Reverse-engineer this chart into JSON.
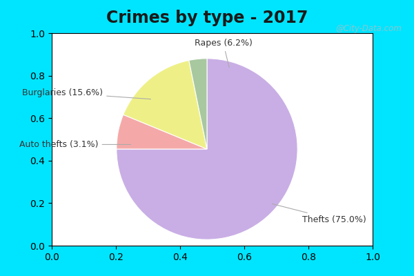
{
  "title": "Crimes by type - 2017",
  "title_fontsize": 17,
  "title_fontweight": "bold",
  "slices": [
    {
      "label": "Thefts",
      "pct": 75.0,
      "color": "#c9aee5"
    },
    {
      "label": "Rapes",
      "pct": 6.2,
      "color": "#f4a9a8"
    },
    {
      "label": "Burglaries",
      "pct": 15.6,
      "color": "#eef087"
    },
    {
      "label": "Auto thefts",
      "pct": 3.2,
      "color": "#a8c8a0"
    }
  ],
  "border_color": "#00e5ff",
  "border_width": 8,
  "bg_color_topleft": "#d0ece0",
  "bg_color_bottomright": "#e8f8f0",
  "watermark": "@City-Data.com",
  "label_fontsize": 9,
  "startangle": 90,
  "label_color": "#333333",
  "title_color": "#1a1a1a"
}
